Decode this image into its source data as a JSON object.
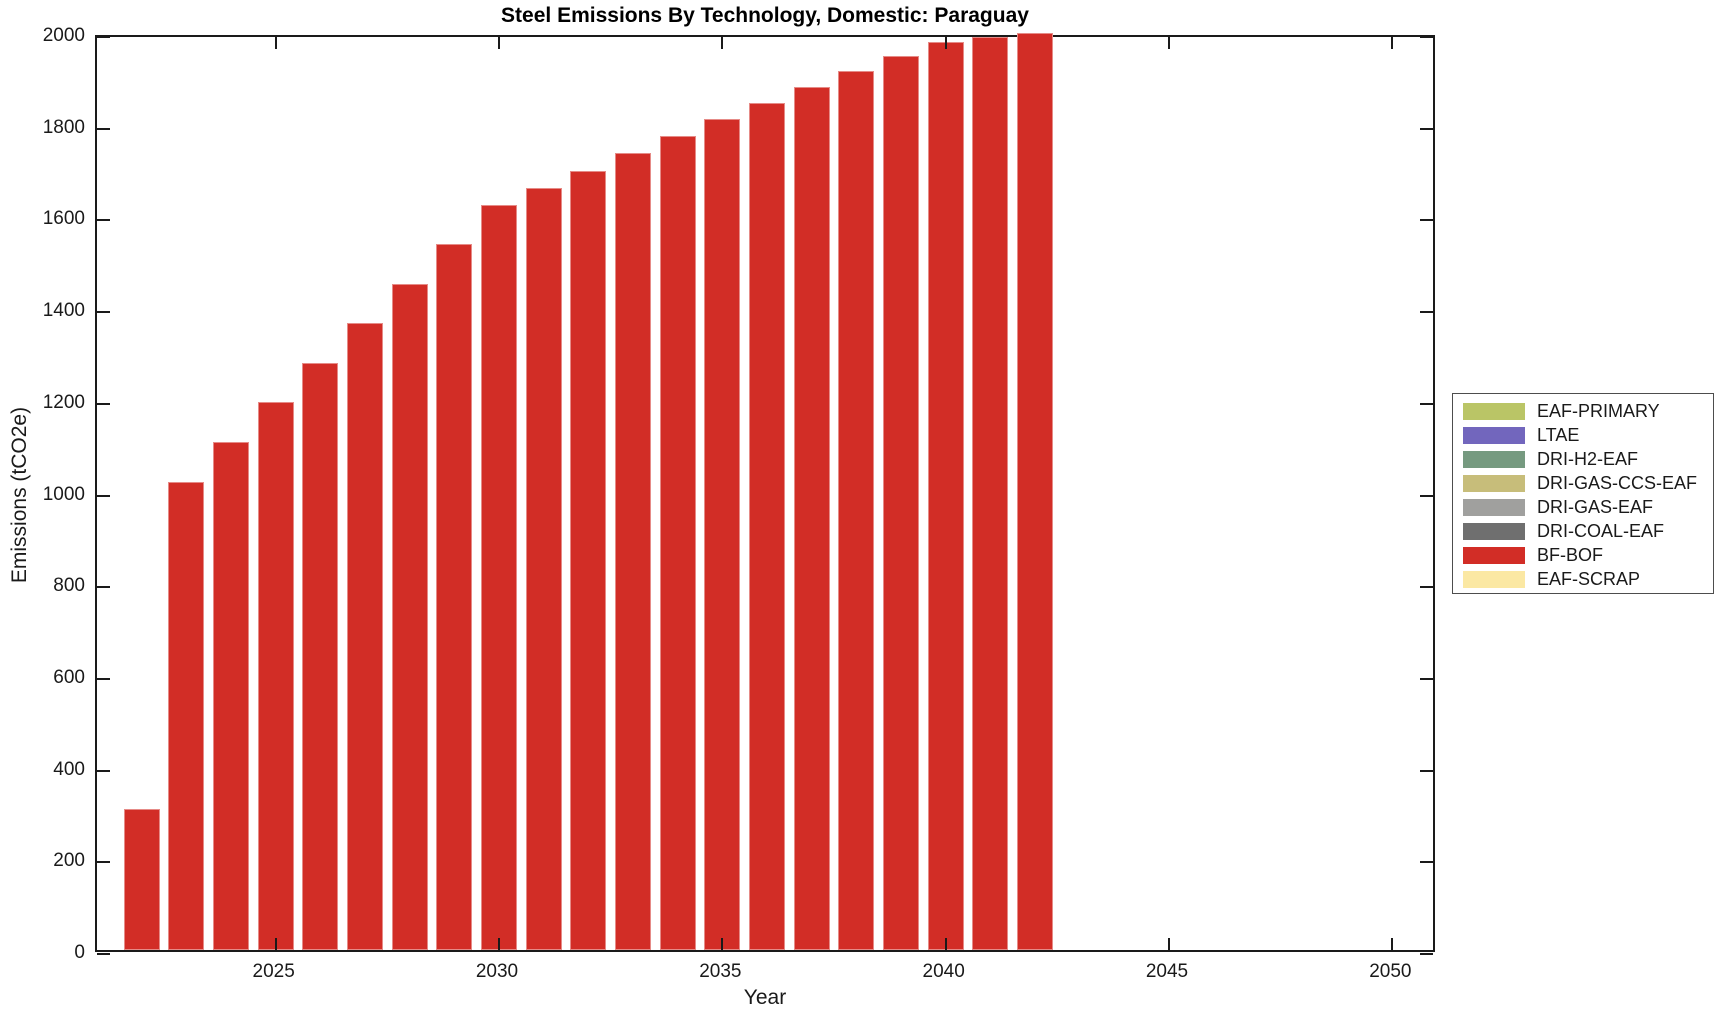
{
  "chart_data": {
    "type": "bar",
    "title": "Steel Emissions By Technology, Domestic: Paraguay",
    "xlabel": "Year",
    "ylabel": "Emissions (tCO2e)",
    "xlim": [
      2021,
      2051
    ],
    "ylim": [
      0,
      2000
    ],
    "x_ticks": [
      2025,
      2030,
      2035,
      2040,
      2045,
      2050
    ],
    "y_ticks": [
      0,
      200,
      400,
      600,
      800,
      1000,
      1200,
      1400,
      1600,
      1800,
      2000
    ],
    "grid": false,
    "legend_position": "outside-right",
    "bar_width_fraction": 0.8,
    "categories": [
      2022,
      2023,
      2024,
      2025,
      2026,
      2027,
      2028,
      2029,
      2030,
      2031,
      2032,
      2033,
      2034,
      2035,
      2036,
      2037,
      2038,
      2039,
      2040,
      2041,
      2042
    ],
    "series": [
      {
        "name": "BF-BOF",
        "color": "#d22d26",
        "values": [
          307,
          1020,
          1108,
          1195,
          1281,
          1367,
          1453,
          1540,
          1625,
          1663,
          1700,
          1738,
          1775,
          1813,
          1848,
          1883,
          1917,
          1950,
          1981,
          1991,
          2000
        ]
      }
    ],
    "legend": [
      {
        "label": "EAF-PRIMARY",
        "color": "#bac566"
      },
      {
        "label": "LTAE",
        "color": "#7266bd"
      },
      {
        "label": "DRI-H2-EAF",
        "color": "#769a80"
      },
      {
        "label": "DRI-GAS-CCS-EAF",
        "color": "#c7bd7a"
      },
      {
        "label": "DRI-GAS-EAF",
        "color": "#a0a09e"
      },
      {
        "label": "DRI-COAL-EAF",
        "color": "#6f6f6f"
      },
      {
        "label": "BF-BOF",
        "color": "#d22d26"
      },
      {
        "label": "EAF-SCRAP",
        "color": "#fbe8a3"
      }
    ],
    "colors": {
      "bar": "#d22d26",
      "axis": "#1a1a1a",
      "background": "#ffffff"
    }
  }
}
